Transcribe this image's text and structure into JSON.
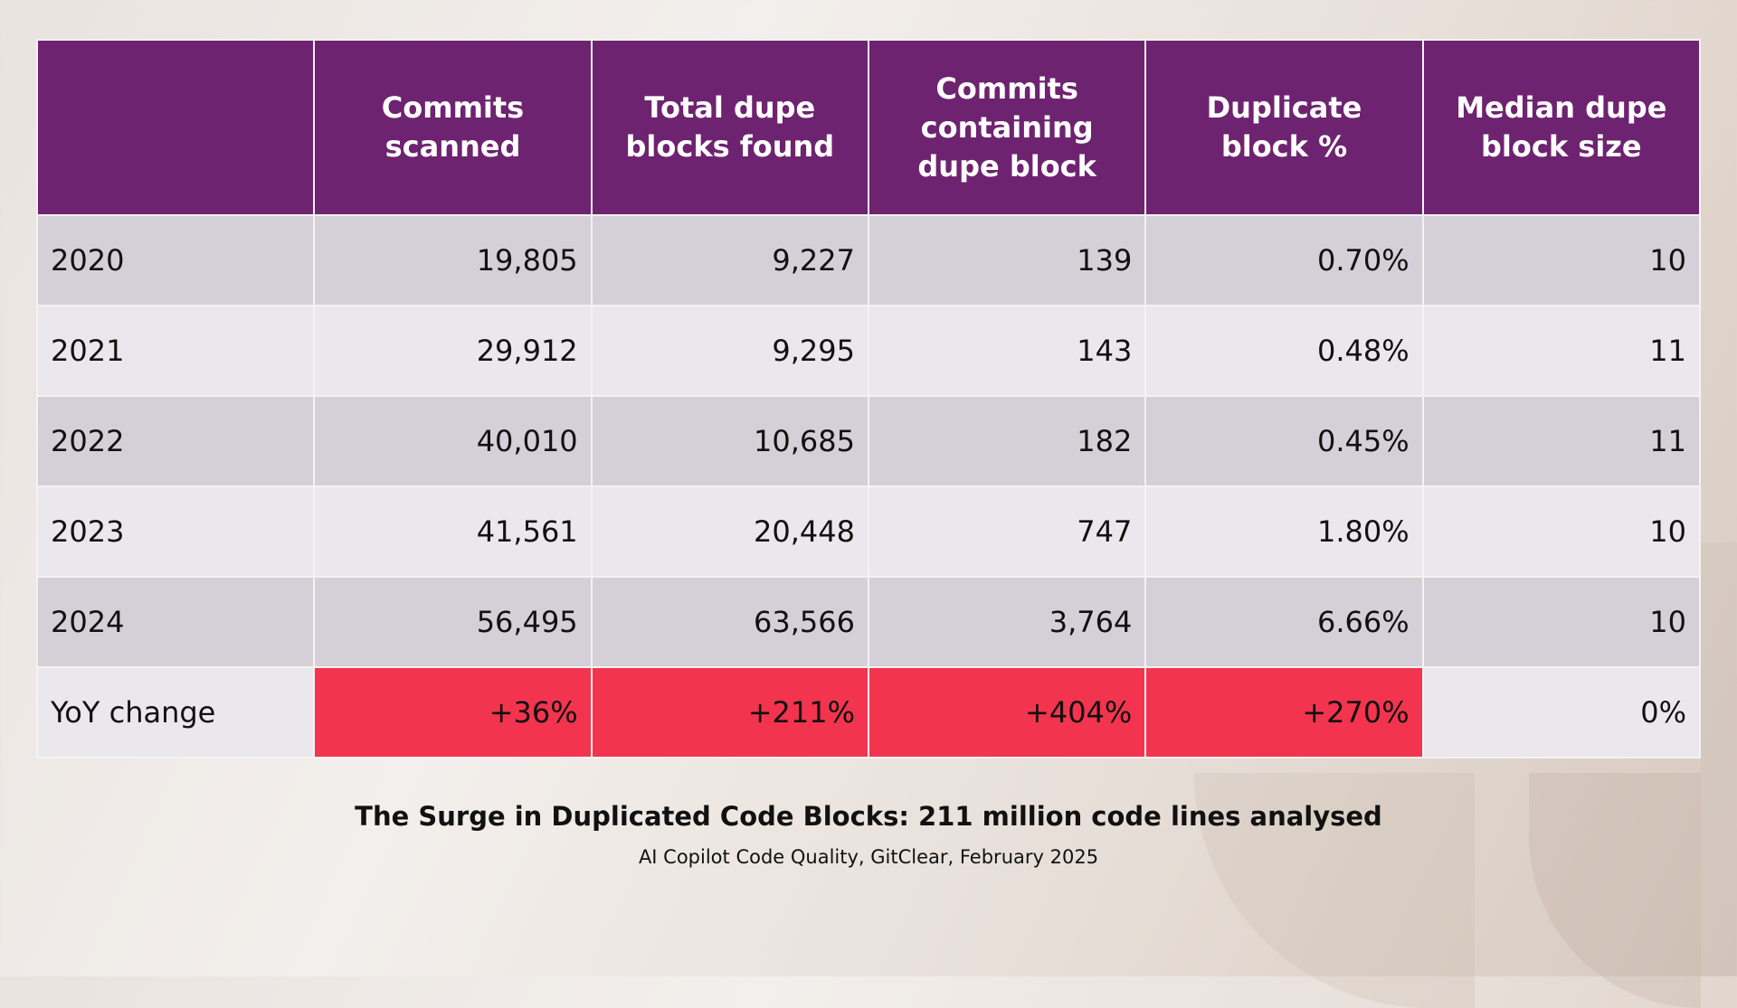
{
  "table": {
    "headers": [
      "",
      "Commits scanned",
      "Total dupe blocks found",
      "Commits containing dupe block",
      "Duplicate block %",
      "Median dupe block size"
    ],
    "rows": [
      [
        "2020",
        "19,805",
        "9,227",
        "139",
        "0.70%",
        "10"
      ],
      [
        "2021",
        "29,912",
        "9,295",
        "143",
        "0.48%",
        "11"
      ],
      [
        "2022",
        "40,010",
        "10,685",
        "182",
        "0.45%",
        "11"
      ],
      [
        "2023",
        "41,561",
        "20,448",
        "747",
        "1.80%",
        "10"
      ],
      [
        "2024",
        "56,495",
        "63,566",
        "3,764",
        "6.66%",
        "10"
      ],
      [
        "YoY change",
        "+36%",
        "+211%",
        "+404%",
        "+270%",
        "0%"
      ]
    ]
  },
  "caption": {
    "title": "The Surge in Duplicated Code Blocks: 211 million code lines analysed",
    "source": "AI Copilot Code Quality, GitClear, February 2025"
  },
  "colors": {
    "header": "#6e2370",
    "highlight": "#f2344f",
    "row_dark": "#d5cfd8",
    "row_light": "#eae8ec"
  }
}
